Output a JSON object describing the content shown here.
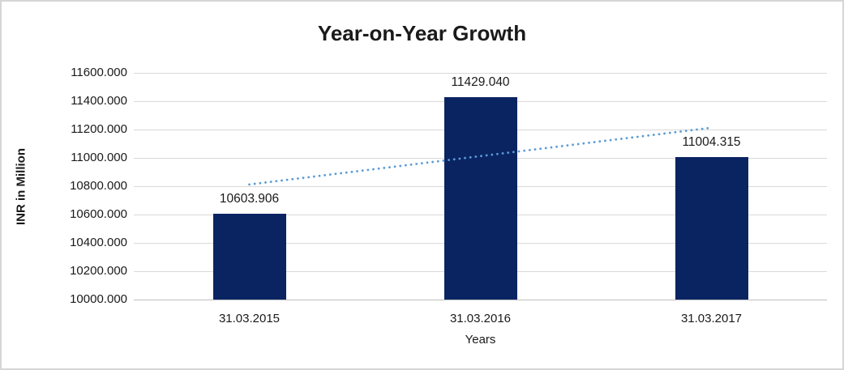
{
  "frame": {
    "background": "#ffffff",
    "border_color": "#d6d6d6"
  },
  "chart_data": {
    "type": "bar",
    "title": "Year-on-Year Growth",
    "xlabel": "Years",
    "ylabel": "INR in Million",
    "categories": [
      "31.03.2015",
      "31.03.2016",
      "31.03.2017"
    ],
    "values": [
      10603.906,
      11429.04,
      11004.315
    ],
    "data_labels": [
      "10603.906",
      "11429.040",
      "11004.315"
    ],
    "ylim": [
      10000,
      11600
    ],
    "ytick_step": 200,
    "ytick_labels_top_down": [
      "11600.000",
      "11400.000",
      "11200.000",
      "11000.000",
      "10800.000",
      "10600.000",
      "10400.000",
      "10200.000",
      "10000.000"
    ],
    "grid": "horizontal",
    "legend": "none",
    "bar_color": "#0a2462",
    "gridline_color": "#d9d9d9",
    "axis_line_color": "#bfbfbf",
    "text_color": "#1a1a1a",
    "trendline": {
      "type": "linear",
      "style": "dotted",
      "color": "#5b9bd5",
      "start_value": 10812.2,
      "end_value": 11212.6
    }
  }
}
